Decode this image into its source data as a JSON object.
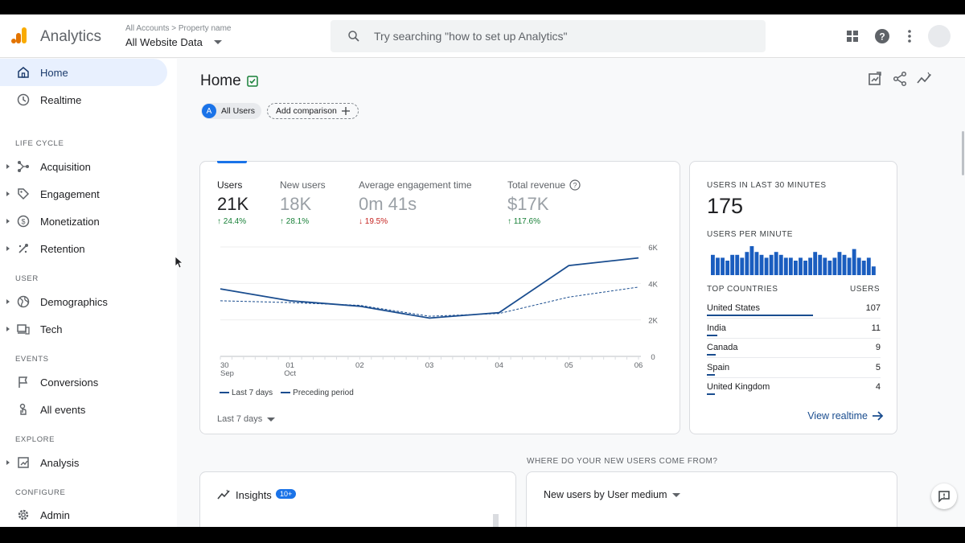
{
  "app": {
    "name": "Analytics"
  },
  "header": {
    "crumb_accounts": "All Accounts",
    "crumb_sep": ">",
    "crumb_property": "Property name",
    "property": "All Website Data",
    "search_placeholder": "Try searching \"how to set up Analytics\""
  },
  "sidebar": {
    "home": "Home",
    "realtime": "Realtime",
    "sections": {
      "life_cycle": "LIFE CYCLE",
      "user": "USER",
      "events": "EVENTS",
      "explore": "EXPLORE",
      "configure": "CONFIGURE"
    },
    "acquisition": "Acquisition",
    "engagement": "Engagement",
    "monetization": "Monetization",
    "retention": "Retention",
    "demographics": "Demographics",
    "tech": "Tech",
    "conversions": "Conversions",
    "all_events": "All events",
    "analysis": "Analysis",
    "admin": "Admin"
  },
  "page": {
    "title": "Home",
    "chip_avatar": "A",
    "chip_all_users": "All Users",
    "add_comparison": "Add comparison"
  },
  "metrics": [
    {
      "label": "Users",
      "value": "21K",
      "change": "24.4%",
      "dir": "up"
    },
    {
      "label": "New users",
      "value": "18K",
      "change": "28.1%",
      "dir": "up"
    },
    {
      "label": "Average engagement time",
      "value": "0m 41s",
      "change": "19.5%",
      "dir": "down"
    },
    {
      "label": "Total revenue",
      "value": "$17K",
      "change": "117.6%",
      "dir": "up"
    }
  ],
  "chart_data": {
    "type": "line",
    "categories": [
      "30 Sep",
      "01 Oct",
      "02",
      "03",
      "04",
      "05",
      "06"
    ],
    "x_ticks": [
      {
        "top": "30",
        "bottom": "Sep"
      },
      {
        "top": "01",
        "bottom": "Oct"
      },
      {
        "top": "02",
        "bottom": ""
      },
      {
        "top": "03",
        "bottom": ""
      },
      {
        "top": "04",
        "bottom": ""
      },
      {
        "top": "05",
        "bottom": ""
      },
      {
        "top": "06",
        "bottom": ""
      }
    ],
    "y_ticks": [
      0,
      2000,
      4000,
      6000
    ],
    "y_tick_labels": [
      "0",
      "2K",
      "4K",
      "6K"
    ],
    "ylim": [
      0,
      6000
    ],
    "series": [
      {
        "name": "Last 7 days",
        "values": [
          3700,
          3050,
          2750,
          2100,
          2400,
          4980,
          5400
        ],
        "style": "solid"
      },
      {
        "name": "Preceding period",
        "values": [
          3050,
          2950,
          2800,
          2200,
          2350,
          3250,
          3800
        ],
        "style": "dashed"
      }
    ],
    "grid": true,
    "color": "#1a4d8f"
  },
  "chart_footer": {
    "range": "Last 7 days"
  },
  "realtime": {
    "title": "USERS IN LAST 30 MINUTES",
    "value": "175",
    "per_minute_label": "USERS PER MINUTE",
    "per_minute": [
      7,
      6,
      6,
      5,
      7,
      7,
      6,
      8,
      10,
      8,
      7,
      6,
      7,
      8,
      7,
      6,
      6,
      5,
      6,
      5,
      6,
      8,
      7,
      6,
      5,
      6,
      8,
      7,
      6,
      9,
      6,
      5,
      6,
      3
    ],
    "top_countries_label": "TOP COUNTRIES",
    "users_label": "USERS",
    "countries": [
      {
        "name": "United States",
        "value": "107",
        "share": 0.61
      },
      {
        "name": "India",
        "value": "11",
        "share": 0.06
      },
      {
        "name": "Canada",
        "value": "9",
        "share": 0.05
      },
      {
        "name": "Spain",
        "value": "5",
        "share": 0.03
      },
      {
        "name": "United Kingdom",
        "value": "4",
        "share": 0.02
      }
    ],
    "view_realtime": "View realtime"
  },
  "bottom": {
    "where_label": "WHERE DO YOUR NEW USERS COME FROM?",
    "insights": "Insights",
    "insights_badge": "10+",
    "medium": "New users by User medium"
  }
}
